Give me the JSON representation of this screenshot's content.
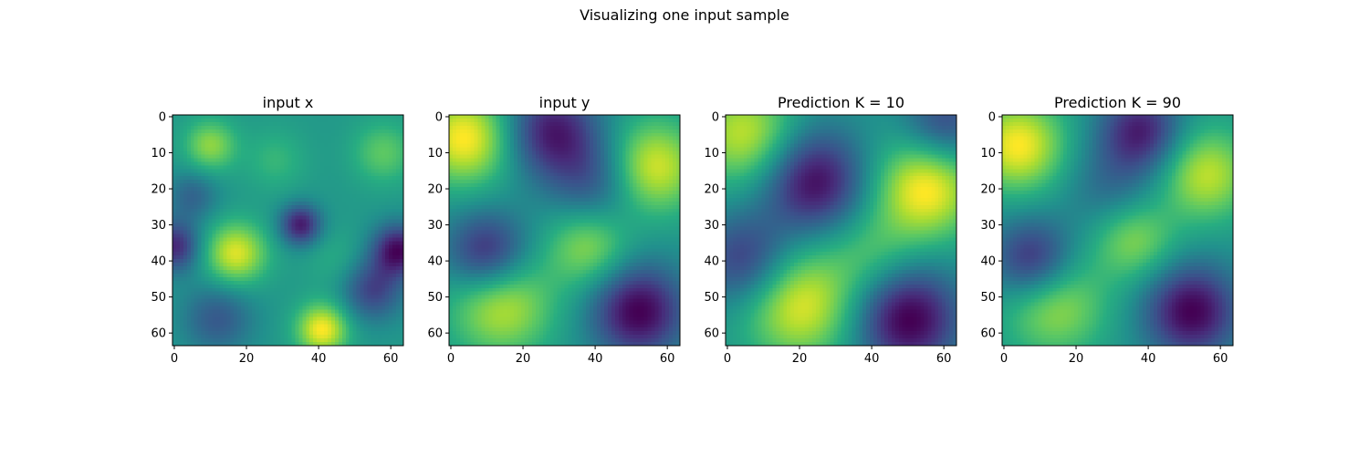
{
  "figure": {
    "suptitle": "Visualizing one input sample",
    "colormap": "viridis",
    "grid_size": 64
  },
  "chart_data": [
    {
      "type": "heatmap",
      "title": "input x",
      "xticks": [
        0,
        20,
        40,
        60
      ],
      "yticks": [
        0,
        10,
        20,
        30,
        40,
        50,
        60
      ],
      "xlim": [
        -0.5,
        63.5
      ],
      "ylim": [
        63.5,
        -0.5
      ],
      "features": [
        {
          "x": 10,
          "y": 8,
          "amp": 0.35,
          "s": 5
        },
        {
          "x": 58,
          "y": 10,
          "amp": 0.25,
          "s": 6
        },
        {
          "x": 17,
          "y": 38,
          "amp": 0.5,
          "s": 6
        },
        {
          "x": 41,
          "y": 59,
          "amp": 0.55,
          "s": 5
        },
        {
          "x": 35,
          "y": 30,
          "amp": -0.55,
          "s": 4
        },
        {
          "x": 62,
          "y": 37,
          "amp": -0.6,
          "s": 5
        },
        {
          "x": 0,
          "y": 36,
          "amp": -0.5,
          "s": 5
        },
        {
          "x": 12,
          "y": 56,
          "amp": -0.3,
          "s": 7
        },
        {
          "x": 5,
          "y": 22,
          "amp": -0.25,
          "s": 5
        },
        {
          "x": 55,
          "y": 48,
          "amp": -0.4,
          "s": 6
        },
        {
          "x": 28,
          "y": 12,
          "amp": 0.15,
          "s": 6
        },
        {
          "x": 45,
          "y": 40,
          "amp": 0.1,
          "s": 6
        }
      ],
      "base": 0.45
    },
    {
      "type": "heatmap",
      "title": "input y",
      "xticks": [
        0,
        20,
        40,
        60
      ],
      "yticks": [
        0,
        10,
        20,
        30,
        40,
        50,
        60
      ],
      "xlim": [
        -0.5,
        63.5
      ],
      "ylim": [
        63.5,
        -0.5
      ],
      "features": [
        {
          "x": 4,
          "y": 6,
          "amp": 0.55,
          "s": 9
        },
        {
          "x": 56,
          "y": 14,
          "amp": 0.5,
          "s": 9
        },
        {
          "x": 14,
          "y": 52,
          "amp": 0.45,
          "s": 10
        },
        {
          "x": 38,
          "y": 36,
          "amp": 0.35,
          "s": 8
        },
        {
          "x": 52,
          "y": 54,
          "amp": -0.6,
          "s": 9
        },
        {
          "x": 28,
          "y": 4,
          "amp": -0.5,
          "s": 9
        },
        {
          "x": 10,
          "y": 38,
          "amp": -0.5,
          "s": 8
        },
        {
          "x": 40,
          "y": 18,
          "amp": -0.3,
          "s": 9
        }
      ],
      "base": 0.5
    },
    {
      "type": "heatmap",
      "title": "Prediction K = 10",
      "xticks": [
        0,
        20,
        40,
        60
      ],
      "yticks": [
        0,
        10,
        20,
        30,
        40,
        50,
        60
      ],
      "xlim": [
        -0.5,
        63.5
      ],
      "ylim": [
        63.5,
        -0.5
      ],
      "features": [
        {
          "x": 5,
          "y": 5,
          "amp": 0.45,
          "s": 10
        },
        {
          "x": 55,
          "y": 20,
          "amp": 0.55,
          "s": 10
        },
        {
          "x": 20,
          "y": 52,
          "amp": 0.5,
          "s": 11
        },
        {
          "x": 40,
          "y": 38,
          "amp": 0.2,
          "s": 9
        },
        {
          "x": 24,
          "y": 18,
          "amp": -0.55,
          "s": 10
        },
        {
          "x": 50,
          "y": 56,
          "amp": -0.6,
          "s": 10
        },
        {
          "x": 5,
          "y": 40,
          "amp": -0.4,
          "s": 9
        },
        {
          "x": 60,
          "y": 2,
          "amp": -0.35,
          "s": 8
        }
      ],
      "base": 0.5
    },
    {
      "type": "heatmap",
      "title": "Prediction K = 90",
      "xticks": [
        0,
        20,
        40,
        60
      ],
      "yticks": [
        0,
        10,
        20,
        30,
        40,
        50,
        60
      ],
      "xlim": [
        -0.5,
        63.5
      ],
      "ylim": [
        63.5,
        -0.5
      ],
      "features": [
        {
          "x": 4,
          "y": 8,
          "amp": 0.55,
          "s": 9
        },
        {
          "x": 56,
          "y": 16,
          "amp": 0.45,
          "s": 9
        },
        {
          "x": 14,
          "y": 52,
          "amp": 0.4,
          "s": 10
        },
        {
          "x": 36,
          "y": 34,
          "amp": 0.35,
          "s": 8
        },
        {
          "x": 52,
          "y": 54,
          "amp": -0.6,
          "s": 9
        },
        {
          "x": 38,
          "y": 4,
          "amp": -0.5,
          "s": 8
        },
        {
          "x": 8,
          "y": 40,
          "amp": -0.5,
          "s": 8
        },
        {
          "x": 30,
          "y": 20,
          "amp": -0.2,
          "s": 9
        }
      ],
      "base": 0.5
    }
  ]
}
